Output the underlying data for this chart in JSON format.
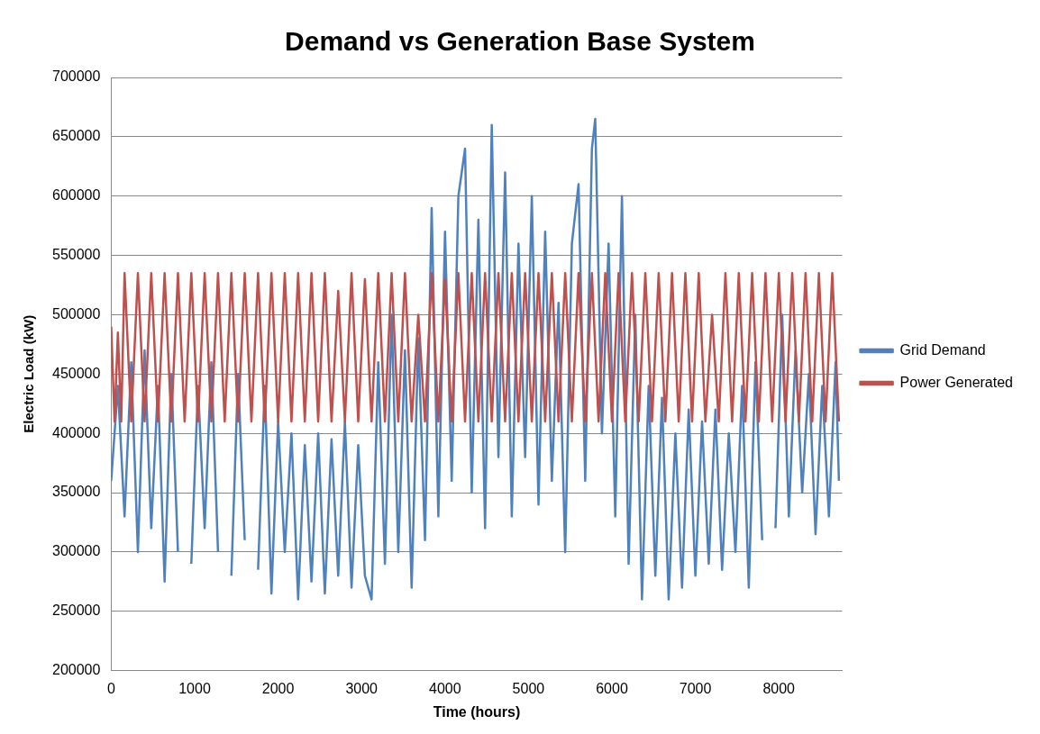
{
  "chart_data": {
    "type": "line",
    "title": "Demand vs Generation Base System",
    "xlabel": "Time (hours)",
    "ylabel": "Electric Load (kW)",
    "xlim": [
      0,
      8760
    ],
    "xticks": [
      0,
      1000,
      2000,
      3000,
      4000,
      5000,
      6000,
      7000,
      8000
    ],
    "ylim": [
      200000,
      700000
    ],
    "yticks": [
      200000,
      250000,
      300000,
      350000,
      400000,
      450000,
      500000,
      550000,
      600000,
      650000,
      700000
    ],
    "grid": "y",
    "legend": "right",
    "marker": "none",
    "line_style": "solid",
    "series": [
      {
        "name": "Grid Demand",
        "color": "#4f81bd",
        "x": [
          0,
          80,
          160,
          240,
          320,
          400,
          480,
          560,
          640,
          720,
          800,
          880,
          960,
          1040,
          1120,
          1200,
          1280,
          1360,
          1440,
          1520,
          1600,
          1680,
          1760,
          1840,
          1920,
          2000,
          2080,
          2160,
          2240,
          2320,
          2400,
          2480,
          2560,
          2640,
          2720,
          2800,
          2880,
          2960,
          3040,
          3120,
          3200,
          3280,
          3360,
          3440,
          3520,
          3600,
          3680,
          3760,
          3840,
          3920,
          4000,
          4080,
          4160,
          4240,
          4320,
          4400,
          4480,
          4560,
          4640,
          4720,
          4800,
          4880,
          4960,
          5040,
          5120,
          5200,
          5280,
          5360,
          5440,
          5520,
          5600,
          5680,
          5760,
          5800,
          5880,
          5960,
          6040,
          6120,
          6200,
          6280,
          6360,
          6440,
          6520,
          6600,
          6680,
          6760,
          6840,
          6920,
          7000,
          7080,
          7160,
          7240,
          7320,
          7400,
          7480,
          7560,
          7640,
          7720,
          7800,
          7880,
          7960,
          8040,
          8120,
          8200,
          8280,
          8360,
          8440,
          8520,
          8600,
          8680,
          8720
        ],
        "values": [
          360000,
          440000,
          330000,
          460000,
          300000,
          470000,
          320000,
          440000,
          275000,
          450000,
          300000,
          null,
          290000,
          440000,
          320000,
          460000,
          300000,
          null,
          280000,
          450000,
          310000,
          null,
          285000,
          440000,
          265000,
          410000,
          300000,
          400000,
          260000,
          390000,
          275000,
          400000,
          265000,
          395000,
          280000,
          410000,
          270000,
          390000,
          280000,
          260000,
          460000,
          290000,
          500000,
          300000,
          470000,
          270000,
          480000,
          310000,
          590000,
          330000,
          570000,
          360000,
          600000,
          640000,
          350000,
          580000,
          320000,
          660000,
          380000,
          620000,
          330000,
          560000,
          380000,
          600000,
          340000,
          570000,
          360000,
          510000,
          300000,
          560000,
          610000,
          360000,
          640000,
          665000,
          400000,
          560000,
          330000,
          600000,
          290000,
          500000,
          260000,
          440000,
          280000,
          430000,
          260000,
          400000,
          270000,
          420000,
          280000,
          410000,
          290000,
          420000,
          285000,
          400000,
          300000,
          440000,
          270000,
          460000,
          310000,
          null,
          320000,
          500000,
          330000,
          470000,
          350000,
          450000,
          315000,
          440000,
          330000,
          460000,
          360000
        ]
      },
      {
        "name": "Power Generated",
        "color": "#c0504d",
        "x": [
          0,
          40,
          80,
          120,
          160,
          240,
          320,
          400,
          480,
          560,
          640,
          720,
          800,
          880,
          960,
          1040,
          1120,
          1200,
          1280,
          1360,
          1440,
          1520,
          1600,
          1680,
          1760,
          1840,
          1920,
          2000,
          2080,
          2160,
          2240,
          2320,
          2400,
          2480,
          2560,
          2640,
          2720,
          2800,
          2880,
          2960,
          3040,
          3120,
          3200,
          3280,
          3360,
          3440,
          3520,
          3600,
          3680,
          3760,
          3840,
          3920,
          4000,
          4080,
          4160,
          4240,
          4320,
          4400,
          4480,
          4560,
          4640,
          4720,
          4800,
          4880,
          4960,
          5040,
          5120,
          5200,
          5280,
          5360,
          5440,
          5520,
          5600,
          5680,
          5760,
          5840,
          5920,
          6000,
          6080,
          6160,
          6240,
          6320,
          6400,
          6480,
          6560,
          6640,
          6720,
          6800,
          6880,
          6960,
          7040,
          7120,
          7200,
          7280,
          7360,
          7440,
          7520,
          7600,
          7680,
          7760,
          7840,
          7920,
          8000,
          8080,
          8160,
          8240,
          8320,
          8400,
          8480,
          8560,
          8640,
          8720
        ],
        "values": [
          490000,
          410000,
          485000,
          410000,
          535000,
          410000,
          535000,
          410000,
          535000,
          410000,
          535000,
          410000,
          535000,
          410000,
          535000,
          410000,
          535000,
          410000,
          535000,
          410000,
          535000,
          410000,
          535000,
          410000,
          535000,
          410000,
          535000,
          410000,
          535000,
          410000,
          535000,
          410000,
          535000,
          410000,
          535000,
          410000,
          520000,
          410000,
          535000,
          410000,
          530000,
          410000,
          535000,
          410000,
          535000,
          410000,
          535000,
          410000,
          500000,
          410000,
          535000,
          410000,
          530000,
          410000,
          535000,
          410000,
          535000,
          410000,
          535000,
          410000,
          535000,
          410000,
          535000,
          410000,
          535000,
          410000,
          535000,
          410000,
          535000,
          410000,
          535000,
          410000,
          535000,
          410000,
          535000,
          410000,
          535000,
          410000,
          535000,
          410000,
          535000,
          410000,
          535000,
          410000,
          535000,
          410000,
          535000,
          410000,
          535000,
          410000,
          535000,
          410000,
          500000,
          410000,
          535000,
          410000,
          535000,
          410000,
          535000,
          410000,
          535000,
          410000,
          535000,
          410000,
          535000,
          410000,
          535000,
          410000,
          535000,
          410000,
          535000,
          410000
        ]
      }
    ]
  }
}
